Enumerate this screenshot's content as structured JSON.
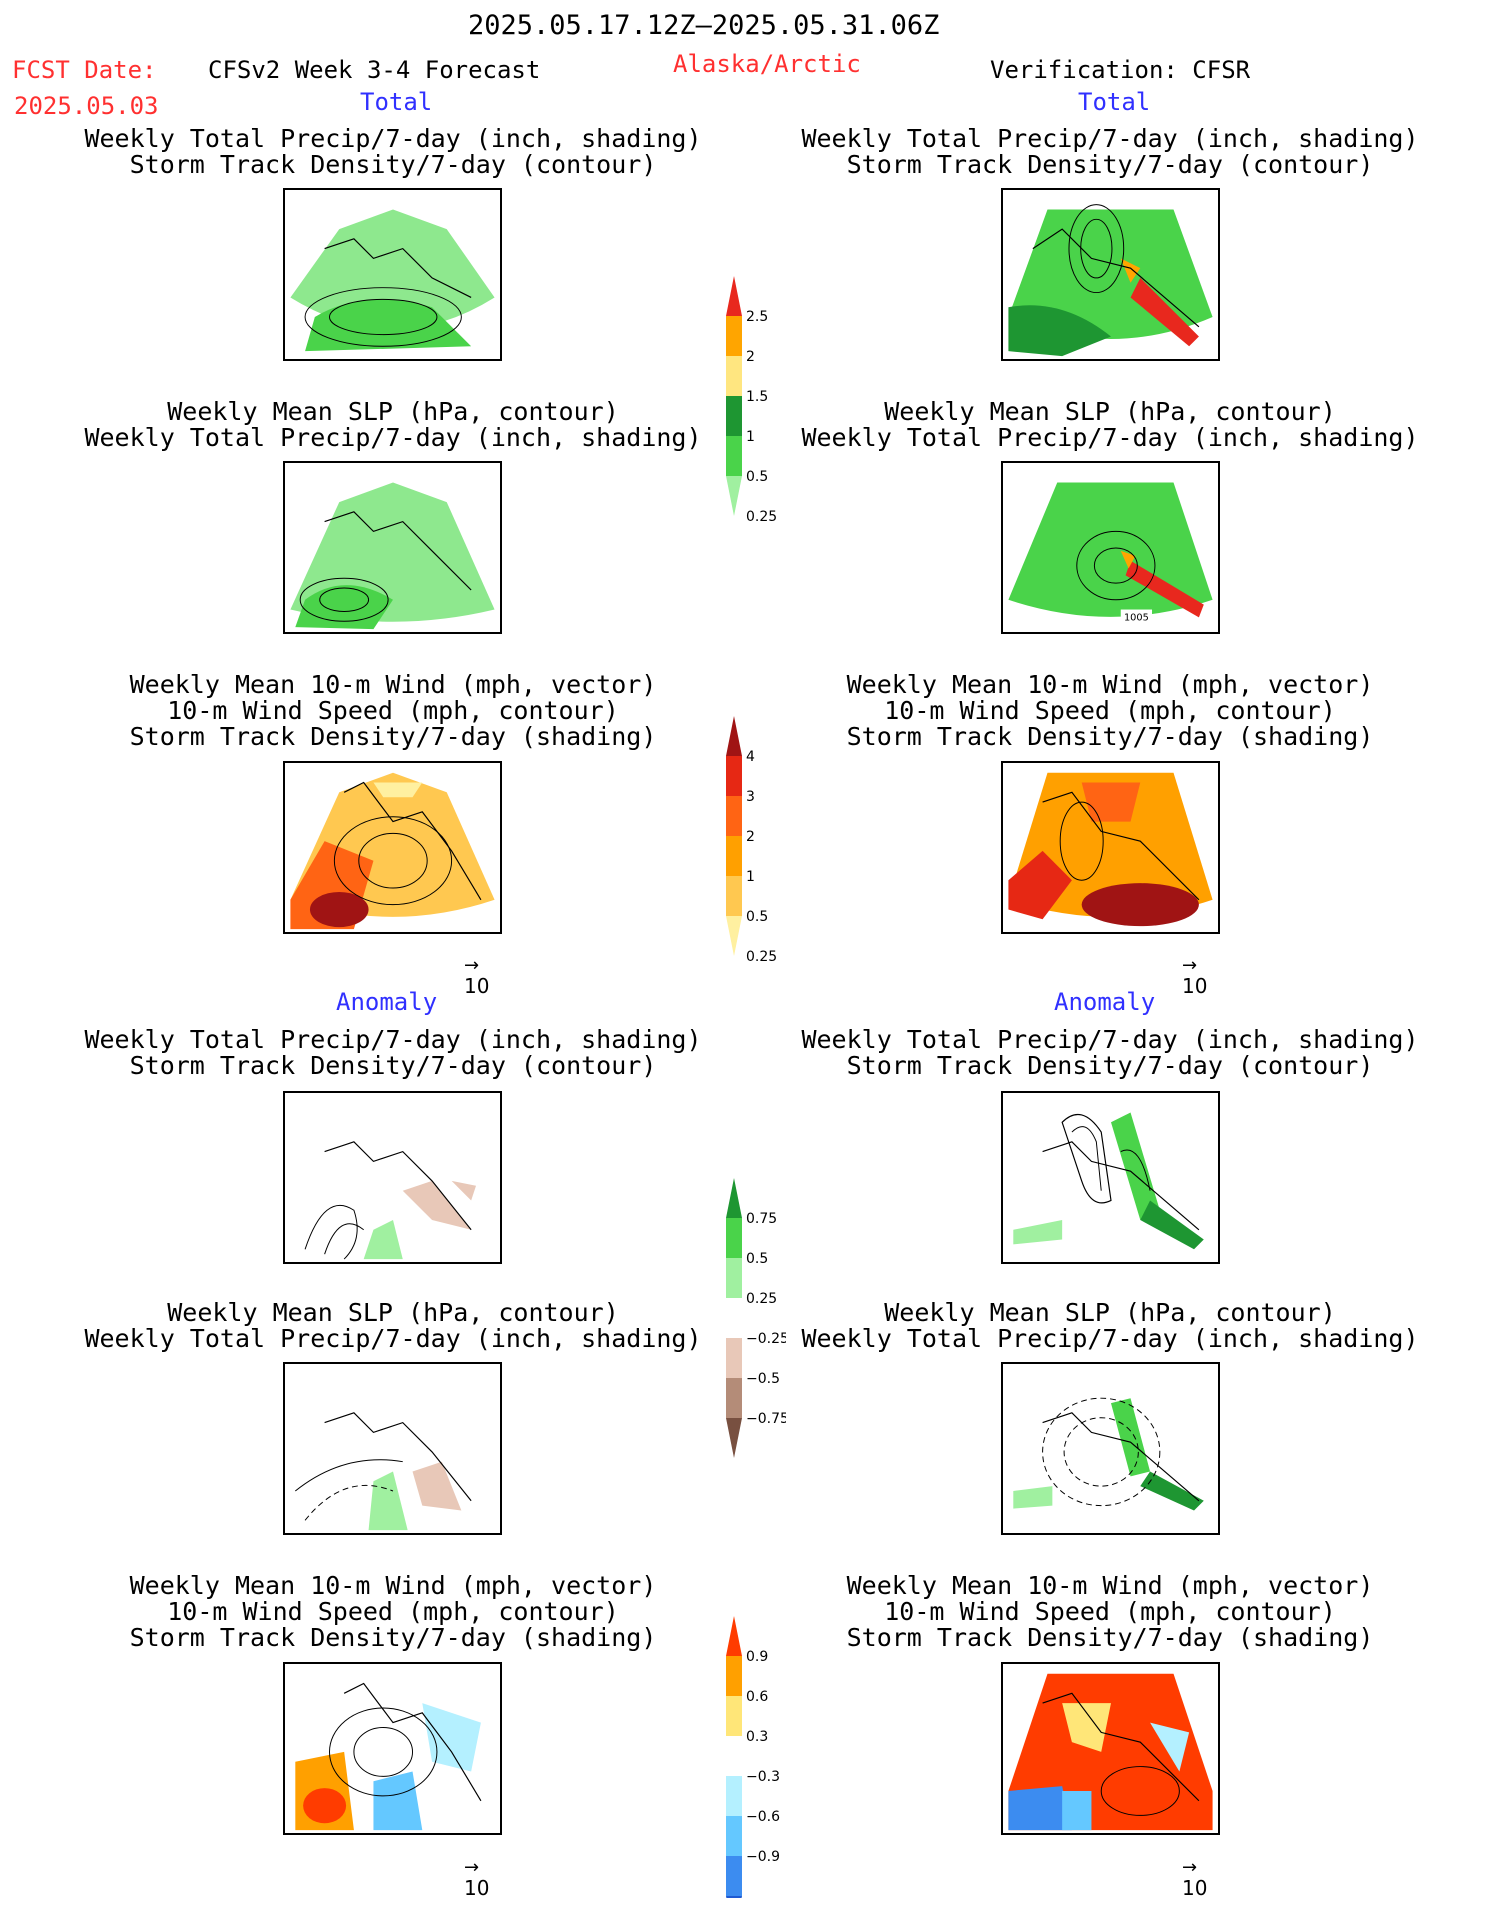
{
  "header": {
    "date_range": "2025.05.17.12Z–2025.05.31.06Z",
    "fcst_label": "FCST Date:",
    "fcst_date": "2025.05.03",
    "model": "CFSv2 Week 3-4 Forecast",
    "region": "Alaska/Arctic",
    "verification": "Verification: CFSR"
  },
  "sections": {
    "total_left": "Total",
    "total_right": "Total",
    "anomaly_left": "Anomaly",
    "anomaly_right": "Anomaly"
  },
  "panel_titles": {
    "precip_track": [
      "Weekly Total Precip/7-day (inch, shading)",
      "Storm Track Density/7-day (contour)"
    ],
    "slp_precip": [
      "Weekly Mean SLP (hPa, contour)",
      "Weekly Total Precip/7-day (inch, shading)"
    ],
    "wind": [
      "Weekly Mean 10-m Wind (mph, vector)",
      "10-m Wind Speed (mph, contour)",
      "Storm Track Density/7-day (shading)"
    ]
  },
  "map_label": "1005",
  "vector_ref": "10",
  "colorbars": [
    {
      "name": "precip-total",
      "labels": [
        "2.5",
        "2",
        "1.5",
        "1",
        "0.5",
        "0.25"
      ],
      "colors": [
        "#e8281e",
        "#ffa500",
        "#ffe680",
        "#1e9632",
        "#4ad34a",
        "#a0f0a0"
      ]
    },
    {
      "name": "track-total",
      "labels": [
        "4",
        "3",
        "2",
        "1",
        "0.5",
        "0.25"
      ],
      "colors": [
        "#a01414",
        "#e62814",
        "#ff6414",
        "#ffa000",
        "#ffc850",
        "#fff0a0"
      ]
    },
    {
      "name": "precip-anom",
      "labels": [
        "0.75",
        "0.5",
        "0.25",
        "−0.25",
        "−0.5",
        "−0.75"
      ],
      "colors": [
        "#1e9632",
        "#4ad34a",
        "#a0f0a0",
        "#ffffff",
        "#e8c8b8",
        "#b48c78",
        "#785040"
      ]
    },
    {
      "name": "track-anom",
      "labels": [
        "0.9",
        "0.6",
        "0.3",
        "−0.3",
        "−0.6",
        "−0.9"
      ],
      "colors": [
        "#ff3c00",
        "#ffa000",
        "#ffe678",
        "#ffffff",
        "#b4f0ff",
        "#64c8ff",
        "#3c8cf0",
        "#1e5ad2"
      ]
    }
  ],
  "colors": {
    "red_text": "#ff3030",
    "blue_text": "#3030ff",
    "precip_green": "#4ad34a",
    "track_orange": "#ffa000"
  }
}
